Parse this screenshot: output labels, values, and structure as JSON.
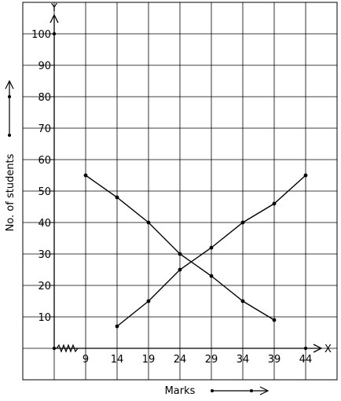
{
  "chart_data": {
    "type": "line",
    "xlabel": "Marks",
    "ylabel": "No. of students",
    "x_axis_letter": "X",
    "y_axis_letter": "Y",
    "x_ticks": [
      "9",
      "14",
      "19",
      "24",
      "29",
      "34",
      "39",
      "44"
    ],
    "y_ticks": [
      "10",
      "20",
      "30",
      "40",
      "50",
      "60",
      "70",
      "80",
      "90",
      "100"
    ],
    "xlim": [
      4,
      49
    ],
    "ylim": [
      0,
      110
    ],
    "grid": true,
    "series": [
      {
        "x": [
          9,
          14,
          19,
          24,
          29,
          34,
          39
        ],
        "y": [
          55,
          48,
          40,
          30,
          23,
          15,
          9
        ]
      },
      {
        "x": [
          14,
          19,
          24,
          29,
          34,
          39,
          44
        ],
        "y": [
          7,
          15,
          25,
          32,
          40,
          46,
          55
        ]
      }
    ]
  }
}
